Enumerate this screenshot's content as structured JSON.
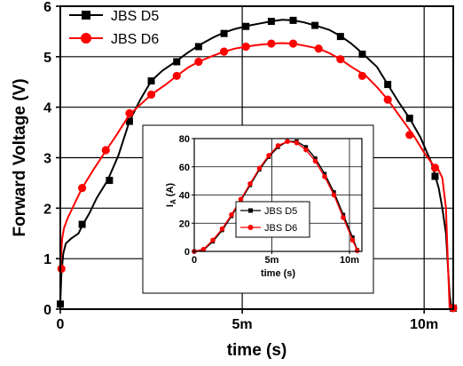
{
  "chart_data": [
    {
      "type": "line",
      "title": "",
      "xlabel": "time (s)",
      "ylabel": "Forward Voltage (V)",
      "xlim": [
        0,
        0.0108
      ],
      "ylim": [
        0,
        6
      ],
      "x_ticks": [
        0,
        0.005,
        0.01
      ],
      "x_tick_labels": [
        "0",
        "5m",
        "10m"
      ],
      "y_ticks": [
        0,
        1,
        2,
        3,
        4,
        5,
        6
      ],
      "y_tick_labels": [
        "0",
        "1",
        "2",
        "3",
        "4",
        "5",
        "6"
      ],
      "grid": true,
      "legend": "top-left",
      "series": [
        {
          "name": "JBS D5",
          "color": "#000000",
          "marker": "square",
          "x": [
            0,
            3e-05,
            8e-05,
            0.00015,
            0.0003,
            0.0005,
            0.0006,
            0.0008,
            0.001,
            0.0013,
            0.0016,
            0.0019,
            0.0022,
            0.0025,
            0.0028,
            0.0032,
            0.0035,
            0.0038,
            0.0042,
            0.0045,
            0.0048,
            0.0052,
            0.0055,
            0.0058,
            0.0061,
            0.0064,
            0.0067,
            0.007,
            0.0074,
            0.0077,
            0.008,
            0.0083,
            0.0087,
            0.009,
            0.0093,
            0.0096,
            0.0099,
            0.0102,
            0.0104,
            0.0105,
            0.0106,
            0.01065,
            0.0107,
            0.01075
          ],
          "y": [
            0.1,
            0.7,
            1.1,
            1.3,
            1.4,
            1.5,
            1.65,
            1.9,
            2.2,
            2.55,
            3.05,
            3.72,
            4.15,
            4.52,
            4.72,
            4.92,
            5.08,
            5.22,
            5.38,
            5.48,
            5.55,
            5.62,
            5.66,
            5.7,
            5.73,
            5.72,
            5.68,
            5.62,
            5.53,
            5.41,
            5.26,
            5.07,
            4.8,
            4.45,
            4.1,
            3.78,
            3.4,
            2.9,
            2.4,
            2.0,
            1.5,
            0.9,
            0.3,
            0.02
          ],
          "markers_x": [
            0,
            0.0006,
            0.00135,
            0.0019,
            0.0025,
            0.0032,
            0.0038,
            0.0045,
            0.0051,
            0.0058,
            0.0064,
            0.007,
            0.0077,
            0.0083,
            0.009,
            0.0096,
            0.0103,
            0.0108
          ],
          "markers_y": [
            0.1,
            1.68,
            2.55,
            3.72,
            4.52,
            4.9,
            5.2,
            5.46,
            5.6,
            5.7,
            5.72,
            5.62,
            5.4,
            5.05,
            4.45,
            3.78,
            2.63,
            0.02
          ]
        },
        {
          "name": "JBS D6",
          "color": "#ff0000",
          "marker": "circle",
          "x": [
            0,
            5e-05,
            0.0001,
            0.0002,
            0.0004,
            0.0006,
            0.0009,
            0.0012,
            0.0015,
            0.0019,
            0.0022,
            0.0025,
            0.0029,
            0.0032,
            0.0035,
            0.0038,
            0.0042,
            0.0045,
            0.0048,
            0.0051,
            0.0054,
            0.0058,
            0.0061,
            0.0064,
            0.0067,
            0.0071,
            0.0074,
            0.0077,
            0.008,
            0.0084,
            0.0087,
            0.009,
            0.0093,
            0.0097,
            0.01,
            0.0102,
            0.0104,
            0.0105,
            0.0106,
            0.01065,
            0.0107
          ],
          "y": [
            0.8,
            1.4,
            1.6,
            1.8,
            2.1,
            2.4,
            2.75,
            3.08,
            3.4,
            3.85,
            4.05,
            4.25,
            4.45,
            4.62,
            4.78,
            4.9,
            5.02,
            5.1,
            5.16,
            5.2,
            5.23,
            5.26,
            5.27,
            5.26,
            5.22,
            5.16,
            5.07,
            4.95,
            4.8,
            4.62,
            4.4,
            4.15,
            3.85,
            3.45,
            3.1,
            2.9,
            2.75,
            2.6,
            2.0,
            1.0,
            0.02
          ],
          "markers_x": [
            3e-05,
            0.0006,
            0.00125,
            0.0019,
            0.0025,
            0.0032,
            0.0038,
            0.0045,
            0.0051,
            0.0058,
            0.0064,
            0.0071,
            0.0077,
            0.0083,
            0.009,
            0.0096,
            0.0103,
            0.0108
          ],
          "markers_y": [
            0.8,
            2.4,
            3.15,
            3.88,
            4.25,
            4.62,
            4.9,
            5.1,
            5.2,
            5.26,
            5.26,
            5.16,
            4.95,
            4.62,
            4.15,
            3.45,
            2.8,
            0.02
          ]
        }
      ]
    },
    {
      "type": "line",
      "title": "",
      "xlabel": "time (s)",
      "ylabel_main": "I",
      "ylabel_sub": "A",
      "ylabel_unit": " (A)",
      "xlim": [
        0,
        0.0108
      ],
      "ylim": [
        0,
        80
      ],
      "x_ticks": [
        0,
        0.005,
        0.01
      ],
      "x_tick_labels": [
        "0",
        "5m",
        "10m"
      ],
      "y_ticks": [
        0,
        20,
        40,
        60,
        80
      ],
      "y_tick_labels": [
        "0",
        "20",
        "40",
        "60",
        "80"
      ],
      "grid": true,
      "legend": "bottom-right",
      "series": [
        {
          "name": "JBS D5",
          "color": "#000000",
          "marker": "square",
          "x": [
            0,
            0.0006,
            0.0012,
            0.0018,
            0.0024,
            0.003,
            0.0036,
            0.0042,
            0.0048,
            0.0054,
            0.006,
            0.0066,
            0.0072,
            0.0078,
            0.0084,
            0.009,
            0.0096,
            0.0102,
            0.0105
          ],
          "y": [
            0,
            1,
            7,
            15,
            25,
            36,
            47,
            58,
            67,
            74,
            78,
            78,
            74,
            66,
            55,
            42,
            26,
            10,
            1
          ]
        },
        {
          "name": "JBS D6",
          "color": "#ff0000",
          "marker": "circle",
          "x": [
            0,
            0.0006,
            0.0012,
            0.0018,
            0.0024,
            0.003,
            0.0036,
            0.0042,
            0.0048,
            0.0054,
            0.006,
            0.0066,
            0.0072,
            0.0078,
            0.0084,
            0.009,
            0.0096,
            0.0102,
            0.0105
          ],
          "y": [
            0,
            1.5,
            8,
            16,
            26,
            37,
            48,
            59,
            68,
            75,
            78,
            77,
            72,
            64,
            53,
            40,
            24,
            8,
            0.5
          ]
        }
      ]
    }
  ]
}
